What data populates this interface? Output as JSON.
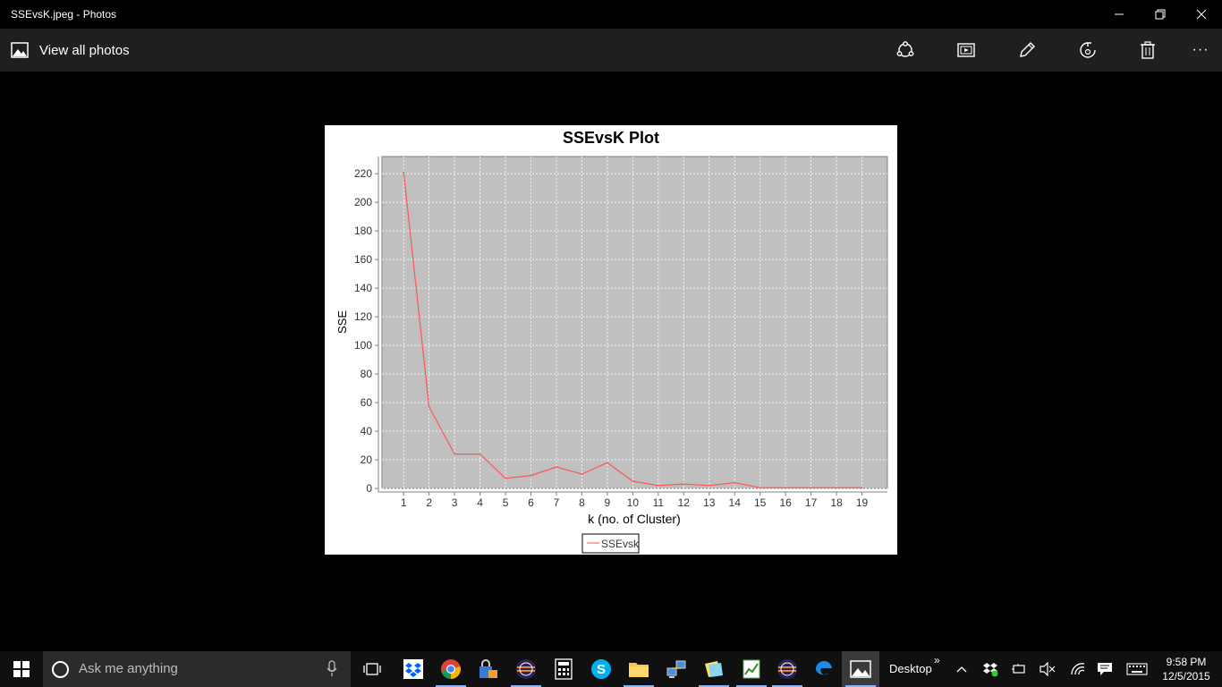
{
  "window": {
    "title": "SSEvsK.jpeg - Photos"
  },
  "toolbar": {
    "view_all_label": "View all photos",
    "more_label": "···"
  },
  "chart_data": {
    "type": "line",
    "title": "SSEvsK Plot",
    "xlabel": "k (no. of Cluster)",
    "ylabel": "SSE",
    "x": [
      1,
      2,
      3,
      4,
      5,
      6,
      7,
      8,
      9,
      10,
      11,
      12,
      13,
      14,
      15,
      16,
      17,
      18,
      19
    ],
    "series": [
      {
        "name": "SSEvsK",
        "color": "#ff5555",
        "values": [
          221,
          57,
          24,
          24,
          7,
          9,
          15,
          10,
          18,
          5,
          2,
          3,
          2,
          4,
          0.5,
          0.5,
          0.5,
          0.5,
          0.5
        ]
      }
    ],
    "ylim": [
      0,
      232
    ],
    "yticks": [
      0,
      20,
      40,
      60,
      80,
      100,
      120,
      140,
      160,
      180,
      200,
      220
    ],
    "xlim": [
      0.15,
      20.0
    ],
    "grid": true,
    "legend_position": "bottom",
    "legend_text": "SSEvsk"
  },
  "taskbar": {
    "search_placeholder": "Ask me anything",
    "desktop_label": "Desktop",
    "desktop_chevron": "»",
    "clock_time": "9:58 PM",
    "clock_date": "12/5/2015"
  }
}
